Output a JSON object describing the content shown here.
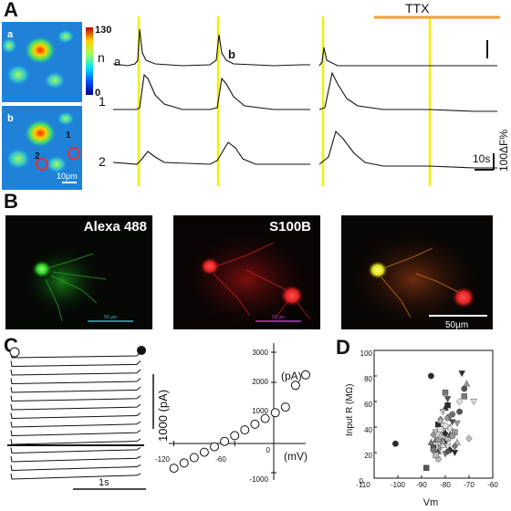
{
  "figure": {
    "panel_labels": [
      "A",
      "B",
      "C",
      "D"
    ]
  },
  "panel_a": {
    "image_a_label": "a",
    "image_b_label": "b",
    "colorbar_max": "130",
    "colorbar_min": "0",
    "roi_labels": [
      "1",
      "2"
    ],
    "image_scale_bar": "10µm",
    "trace_labels": [
      "n",
      "a",
      "b",
      "1",
      "2"
    ],
    "drug_label": "TTX",
    "scale_time": "10s",
    "scale_amplitude": "100ΔF%",
    "colors": {
      "ttx_bar": "#f0a030",
      "markers": "#f0f000",
      "roi": "#e03030"
    }
  },
  "panel_b": {
    "green_label": "Alexa 488",
    "red_label": "S100B",
    "scale_small_1": "50 µm",
    "scale_small_2": "50 µm",
    "scale_merge": "50µm",
    "colors": {
      "green": "#2bd02b",
      "red": "#e02020",
      "merge_soma": "#e0e020"
    }
  },
  "panel_c": {
    "scale_current": "1000 (pA)",
    "scale_time": "1s",
    "iv_x_ticks": [
      "-120",
      "-60",
      "0"
    ],
    "iv_y_ticks": [
      "3000",
      "2000",
      "1000",
      "-1000"
    ],
    "iv_x_unit": "(mV)",
    "iv_y_unit": "(pA)"
  },
  "chart_data": [
    {
      "type": "scatter",
      "title": "",
      "xlabel": "(mV)",
      "ylabel": "(pA)",
      "xlim": [
        -125,
        10
      ],
      "ylim": [
        -1000,
        3000
      ],
      "series": [
        {
          "marker": "open-circle",
          "x": [
            -120,
            -110,
            -100,
            -90,
            -80,
            -70,
            -60,
            -50,
            -40,
            -30,
            -20,
            -10,
            0,
            10
          ],
          "y": [
            -850,
            -680,
            -500,
            -320,
            -140,
            40,
            230,
            420,
            610,
            800,
            990,
            1180,
            1900,
            2250
          ]
        }
      ]
    },
    {
      "type": "scatter",
      "title": "",
      "xlabel": "Vm",
      "ylabel": "Input R (MΩ)",
      "xlim": [
        -110,
        -60
      ],
      "ylim": [
        0,
        100
      ],
      "xticks": [
        "-110",
        "-100",
        "-90",
        "-80",
        "-70",
        "-60"
      ],
      "yticks": [
        "0",
        "20",
        "40",
        "60",
        "80",
        "100"
      ],
      "series": [
        {
          "marker": "mixed-gray",
          "x": [
            -101,
            -88,
            -86,
            -85,
            -84,
            -84,
            -83,
            -83,
            -82,
            -82,
            -81,
            -81,
            -80,
            -80,
            -80,
            -79,
            -79,
            -78,
            -78,
            -77,
            -77,
            -76,
            -75,
            -74,
            -73,
            -72,
            -72,
            -71,
            -70,
            -68,
            -86,
            -85,
            -84,
            -82,
            -81,
            -80,
            -79,
            -78,
            -76,
            -75,
            -83,
            -82,
            -80,
            -79,
            -78,
            -77,
            -84,
            -81,
            -80,
            -79,
            -85,
            -83,
            -82,
            -78,
            -76,
            -74,
            -80,
            -81,
            -82,
            -79
          ],
          "y": [
            27,
            8,
            28,
            34,
            36,
            26,
            42,
            21,
            30,
            24,
            38,
            33,
            55,
            29,
            19,
            47,
            31,
            40,
            22,
            44,
            50,
            36,
            28,
            60,
            82,
            70,
            64,
            74,
            31,
            60,
            80,
            24,
            30,
            46,
            52,
            41,
            57,
            34,
            25,
            43,
            15,
            38,
            27,
            21,
            48,
            33,
            18,
            26,
            35,
            62,
            22,
            30,
            45,
            39,
            20,
            52,
            67,
            29,
            33,
            25
          ]
        }
      ]
    }
  ],
  "panel_d": {
    "xlabel": "Vm",
    "ylabel": "Input R (MΩ)",
    "x_ticks": [
      "-110",
      "-100",
      "-90",
      "-80",
      "-70",
      "-60"
    ],
    "y_ticks": [
      "0",
      "20",
      "40",
      "60",
      "80",
      "100"
    ]
  }
}
